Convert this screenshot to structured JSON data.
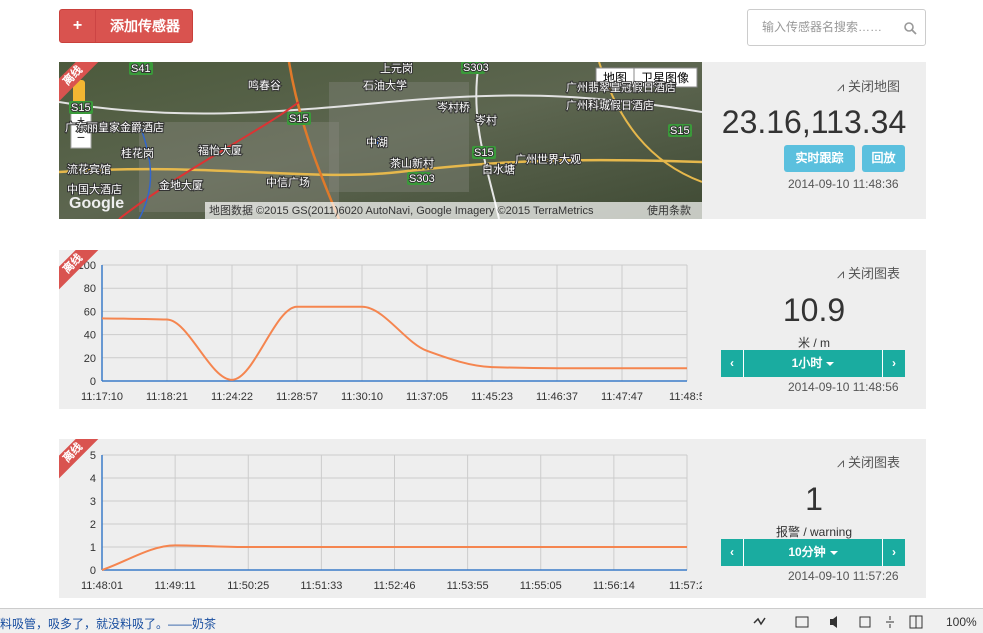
{
  "header": {
    "add_button": "添加传感器",
    "search_placeholder": "输入传感器名搜索……"
  },
  "map_panel": {
    "badge": "离线",
    "map_type_buttons": [
      "地图",
      "卫星图像"
    ],
    "labels": [
      "S41",
      "鸣春谷",
      "石油大学",
      "上元岗",
      "S303",
      "岑村桥",
      "广州翡翠皇冠假日酒店",
      "广州科城假日酒店",
      "S15",
      "广东丽皇家金爵酒店",
      "S15",
      "福怡大厦",
      "中湖",
      "桂花岗",
      "茶山新村",
      "岑村",
      "S15",
      "广州世界大观",
      "流花宾馆",
      "白水塘",
      "S303",
      "中国大酒店",
      "金地大厦",
      "中信广场",
      "S15"
    ],
    "logo": "Google",
    "attribution": "地图数据 ©2015 GS(2011)6020 AutoNavi, Google Imagery ©2015 TerraMetrics",
    "terms": "使用条款",
    "toggle": "关闭地图",
    "coordinates": "23.16,113.34",
    "buttons": [
      "实时跟踪",
      "回放"
    ],
    "timestamp": "2014-09-10 11:48:36"
  },
  "chart_panels": [
    {
      "badge": "离线",
      "toggle": "关闭图表",
      "value": 10.9,
      "unit": "米 / m",
      "range": "1小时",
      "timestamp": "2014-09-10 11:48:56"
    },
    {
      "badge": "离线",
      "toggle": "关闭图表",
      "value": 1,
      "unit": "报警 / warning",
      "range": "10分钟",
      "timestamp": "2014-09-10 11:57:26"
    }
  ],
  "chart_data": [
    {
      "type": "line",
      "categories": [
        "11:17:10",
        "11:18:21",
        "11:24:22",
        "11:28:57",
        "11:30:10",
        "11:37:05",
        "11:45:23",
        "11:46:37",
        "11:47:47",
        "11:48:5"
      ],
      "values": [
        54,
        53,
        1,
        64,
        64,
        26,
        12,
        11,
        11,
        11
      ],
      "color": "#f5854f",
      "ylim": [
        0,
        100
      ],
      "yticks": [
        0,
        20,
        40,
        60,
        80,
        100
      ],
      "grid": true
    },
    {
      "type": "line",
      "categories": [
        "11:48:01",
        "11:49:11",
        "11:50:25",
        "11:51:33",
        "11:52:46",
        "11:53:55",
        "11:55:05",
        "11:56:14",
        "11:57:2"
      ],
      "values": [
        0,
        1.07,
        1,
        1,
        1,
        1,
        1,
        1,
        1
      ],
      "color": "#f5854f",
      "ylim": [
        0,
        5
      ],
      "yticks": [
        0,
        1,
        2,
        3,
        4,
        5
      ],
      "grid": true
    }
  ],
  "status_bar": {
    "message": "料吸管，吸多了，就没料吸了。——奶茶",
    "zoom": "100%"
  }
}
